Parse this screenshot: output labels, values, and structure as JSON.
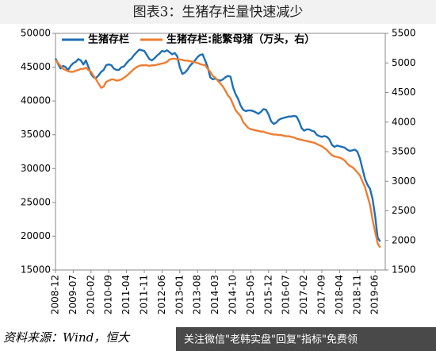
{
  "chart_data": {
    "type": "line",
    "title": "图表3：生猪存栏量快速减少",
    "source": "资料来源：Wind，恒大",
    "annotations": [
      "关注微信\"老韩实盘\"回复\"指标\"免费领"
    ],
    "categories": [
      "2008-12",
      null,
      null,
      null,
      null,
      null,
      null,
      "2009-07",
      null,
      null,
      null,
      null,
      null,
      null,
      "2010-02",
      null,
      null,
      null,
      null,
      null,
      null,
      "2010-09",
      null,
      null,
      null,
      null,
      null,
      null,
      "2011-04",
      null,
      null,
      null,
      null,
      null,
      null,
      "2011-11",
      null,
      null,
      null,
      null,
      null,
      null,
      "2012-06",
      null,
      null,
      null,
      null,
      null,
      null,
      "2013-01",
      null,
      null,
      null,
      null,
      null,
      null,
      "2013-08",
      null,
      null,
      null,
      null,
      null,
      null,
      "2014-03",
      null,
      null,
      null,
      null,
      null,
      null,
      "2014-10",
      null,
      null,
      null,
      null,
      null,
      null,
      "2015-05",
      null,
      null,
      null,
      null,
      null,
      null,
      "2015-12",
      null,
      null,
      null,
      null,
      null,
      null,
      "2016-07",
      null,
      null,
      null,
      null,
      null,
      null,
      "2017-02",
      null,
      null,
      null,
      null,
      null,
      null,
      "2017-09",
      null,
      null,
      null,
      null,
      null,
      null,
      "2018-04",
      null,
      null,
      null,
      null,
      null,
      null,
      "2018-11",
      null,
      null,
      null,
      null,
      null,
      null,
      "2019-06",
      null,
      null
    ],
    "series": [
      {
        "name": "生猪存栏",
        "color": "#1f6fb5",
        "axis": "y",
        "values": [
          46300,
          45500,
          44800,
          45200,
          45000,
          44600,
          45200,
          45600,
          45800,
          46200,
          46000,
          45400,
          46000,
          45000,
          44000,
          43500,
          43400,
          43800,
          44300,
          44600,
          45300,
          45400,
          45300,
          44800,
          44600,
          44600,
          45000,
          45100,
          45600,
          46000,
          46300,
          46800,
          47200,
          47600,
          47500,
          47400,
          46800,
          46200,
          46000,
          46300,
          46700,
          47000,
          47400,
          47300,
          47500,
          47200,
          46900,
          47100,
          46600,
          45000,
          44000,
          44200,
          44600,
          45200,
          45600,
          46000,
          46500,
          46800,
          46900,
          46000,
          45000,
          43500,
          43200,
          43300,
          43100,
          43000,
          43200,
          43500,
          43700,
          43600,
          42000,
          41000,
          40300,
          39300,
          38700,
          38500,
          38600,
          38600,
          38500,
          38300,
          38100,
          38400,
          38800,
          38700,
          38000,
          37000,
          36600,
          36800,
          37200,
          37400,
          37500,
          37600,
          37700,
          37700,
          37800,
          37700,
          37000,
          36000,
          35600,
          35800,
          35800,
          35600,
          35500,
          35000,
          34800,
          34700,
          34800,
          34700,
          34300,
          33500,
          33200,
          33400,
          33300,
          33200,
          33100,
          32800,
          32600,
          32700,
          32800,
          32500,
          31500,
          30000,
          28500,
          27600,
          27000,
          25500,
          23000,
          19800,
          19200
        ]
      },
      {
        "name": "生猪存栏:能繁母猪（万头，右）",
        "color": "#ed7d31",
        "axis": "y2",
        "values": [
          5050,
          5000,
          4950,
          4900,
          4880,
          4860,
          4850,
          4850,
          4870,
          4880,
          4900,
          4900,
          4920,
          4880,
          4850,
          4780,
          4720,
          4650,
          4580,
          4600,
          4680,
          4700,
          4720,
          4720,
          4700,
          4710,
          4720,
          4750,
          4780,
          4820,
          4860,
          4900,
          4930,
          4950,
          4960,
          4960,
          4960,
          4950,
          4960,
          4960,
          4970,
          4980,
          4990,
          5000,
          5020,
          5060,
          5070,
          5070,
          5060,
          5060,
          5050,
          5040,
          5040,
          5030,
          5020,
          5010,
          5000,
          4980,
          4970,
          4960,
          4900,
          4850,
          4780,
          4750,
          4700,
          4650,
          4600,
          4530,
          4450,
          4400,
          4300,
          4200,
          4150,
          4100,
          4000,
          3950,
          3900,
          3880,
          3870,
          3860,
          3850,
          3840,
          3840,
          3820,
          3810,
          3800,
          3790,
          3790,
          3780,
          3780,
          3770,
          3760,
          3760,
          3750,
          3740,
          3720,
          3710,
          3700,
          3690,
          3680,
          3670,
          3660,
          3650,
          3630,
          3610,
          3590,
          3560,
          3530,
          3480,
          3440,
          3420,
          3410,
          3400,
          3380,
          3350,
          3300,
          3260,
          3240,
          3200,
          3150,
          3100,
          3000,
          2900,
          2750,
          2600,
          2350,
          2150,
          1950,
          1880
        ]
      }
    ],
    "ylim": [
      15000,
      50000
    ],
    "yticks": [
      15000,
      20000,
      25000,
      30000,
      35000,
      40000,
      45000,
      50000
    ],
    "y2lim": [
      1500,
      5500
    ],
    "y2ticks": [
      1500,
      2000,
      2500,
      3000,
      3500,
      4000,
      4500,
      5000,
      5500
    ],
    "legend": "top-left"
  }
}
